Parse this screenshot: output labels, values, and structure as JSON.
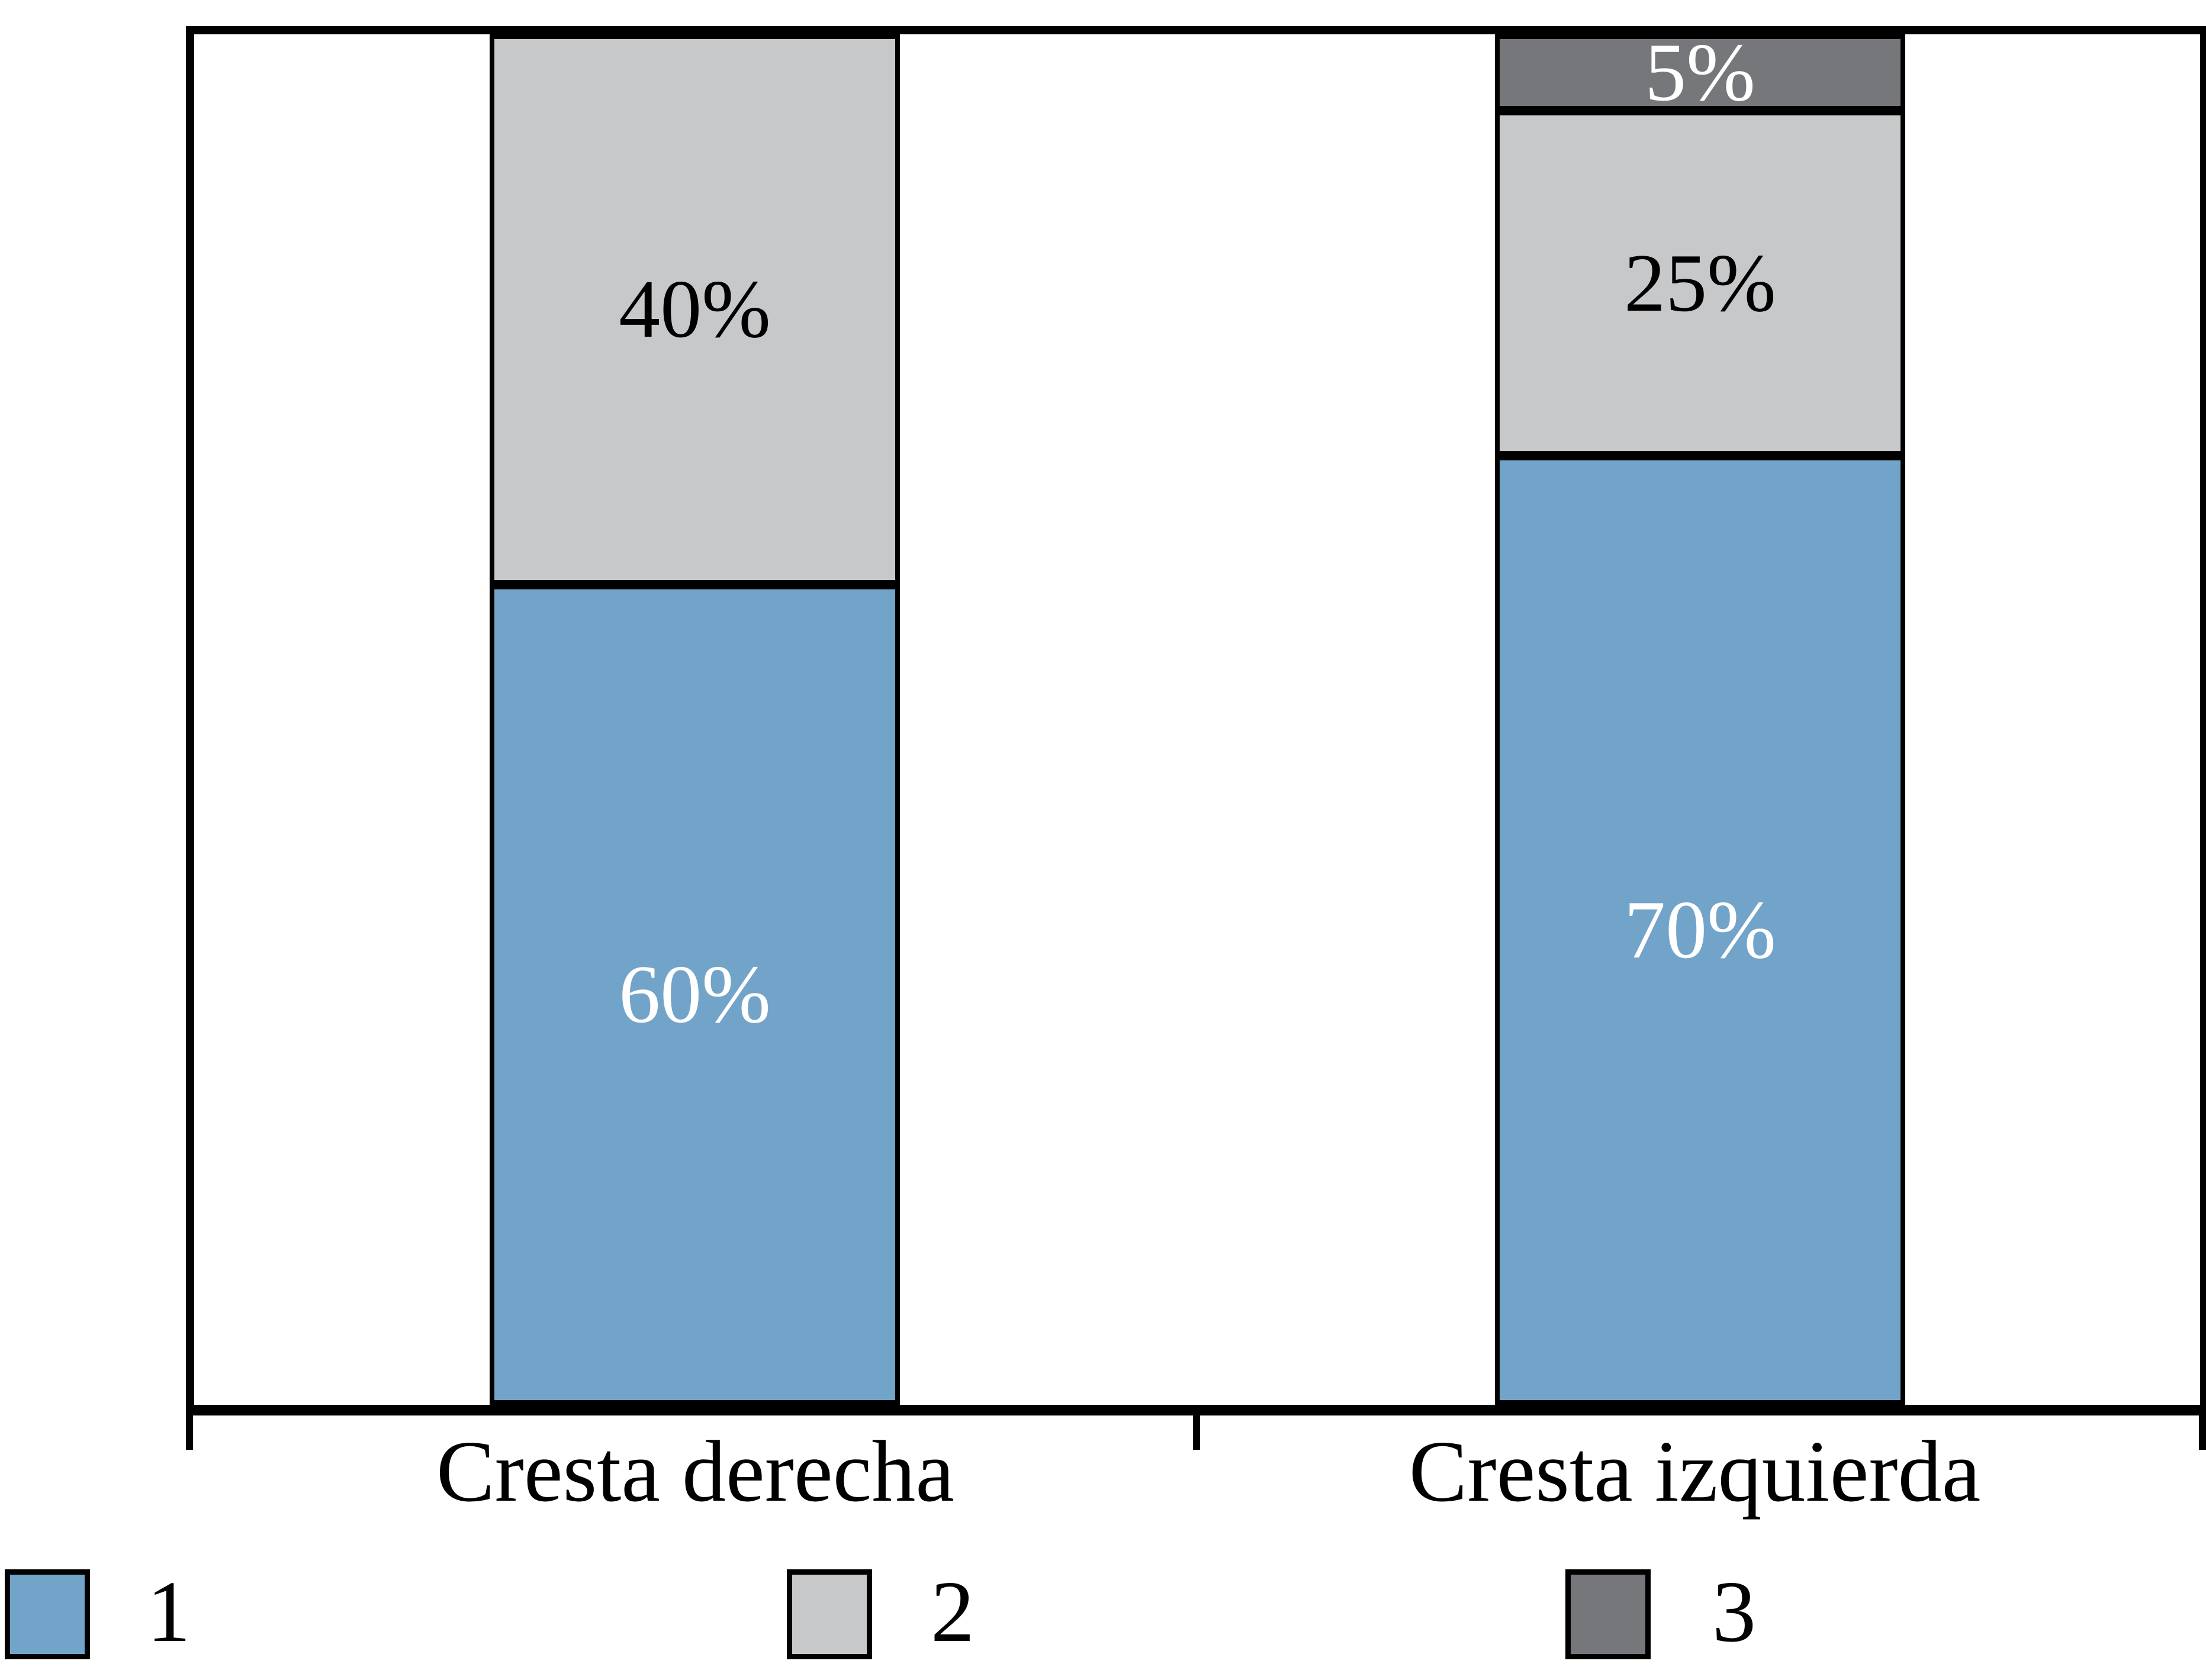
{
  "chart_data": {
    "type": "bar",
    "stacked": true,
    "unit": "percent",
    "orientation": "vertical",
    "grid": false,
    "y_axis_visible": false,
    "ylim": [
      0,
      100
    ],
    "categories": [
      "Cresta derecha",
      "Cresta izquierda"
    ],
    "series": [
      {
        "name": "1",
        "color": "#72A4CA"
      },
      {
        "name": "2",
        "color": "#C7C8CA"
      },
      {
        "name": "3",
        "color": "#76777A"
      }
    ],
    "bars": [
      {
        "category": "Cresta derecha",
        "segments": [
          {
            "series": "1",
            "value": 60,
            "label": "60%",
            "label_color": "#ffffff"
          },
          {
            "series": "2",
            "value": 40,
            "label": "40%",
            "label_color": "#000000"
          }
        ]
      },
      {
        "category": "Cresta izquierda",
        "segments": [
          {
            "series": "1",
            "value": 70,
            "label": "70%",
            "label_color": "#ffffff"
          },
          {
            "series": "2",
            "value": 25,
            "label": "25%",
            "label_color": "#000000"
          },
          {
            "series": "3",
            "value": 5,
            "label": "5%",
            "label_color": "#ffffff"
          }
        ]
      }
    ],
    "legend": [
      {
        "label": "1",
        "color": "#72A4CA"
      },
      {
        "label": "2",
        "color": "#C7C8CA"
      },
      {
        "label": "3",
        "color": "#76777A"
      }
    ],
    "legend_position": "bottom",
    "frame_color": "#000000",
    "background_color": "#ffffff"
  }
}
